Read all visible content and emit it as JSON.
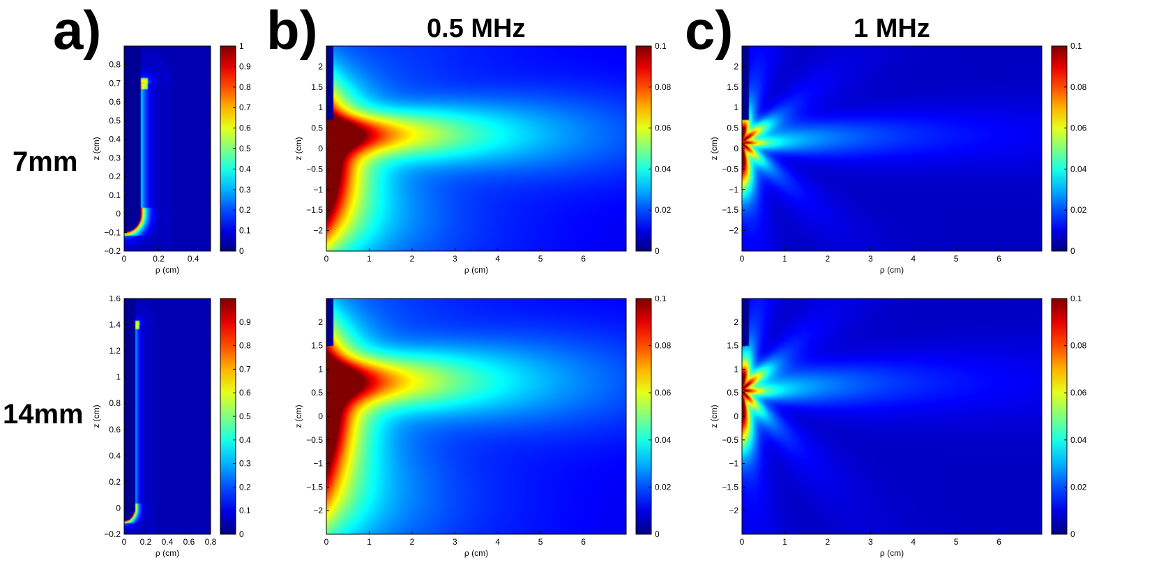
{
  "figure": {
    "panel_labels": [
      "a)",
      "b)",
      "c)"
    ],
    "column_titles": [
      "0.5 MHz",
      "1 MHz"
    ],
    "row_labels": [
      "7mm",
      "14mm"
    ]
  },
  "colormap": "jet",
  "chart_data": [
    {
      "id": "a-7mm",
      "type": "heatmap",
      "title": "",
      "xlabel": "ρ (cm)",
      "ylabel": "z (cm)",
      "xlim": [
        0,
        0.5
      ],
      "ylim": [
        -0.2,
        0.9
      ],
      "xticks": [
        0,
        0.2,
        0.4
      ],
      "xtick_labels": [
        "0",
        "0.2",
        "0.4"
      ],
      "yticks": [
        -0.2,
        -0.1,
        0,
        0.1,
        0.2,
        0.3,
        0.4,
        0.5,
        0.6,
        0.7,
        0.8
      ],
      "ytick_labels": [
        "−0.2",
        "−0.1",
        "0",
        "0.1",
        "0.2",
        "0.3",
        "0.4",
        "0.5",
        "0.6",
        "0.7",
        "0.8"
      ],
      "clim": [
        0,
        1
      ],
      "cticks": [
        0,
        0.1,
        0.2,
        0.3,
        0.4,
        0.5,
        0.6,
        0.7,
        0.8,
        0.9,
        1
      ],
      "ctick_labels": [
        "0",
        "0.1",
        "0.2",
        "0.3",
        "0.4",
        "0.5",
        "0.6",
        "0.7",
        "0.8",
        "0.9",
        "1"
      ],
      "field": "needle",
      "needle_tip_z": 0.7,
      "needle_radius": 0.1
    },
    {
      "id": "b-7mm",
      "type": "heatmap",
      "title": "",
      "xlabel": "ρ (cm)",
      "ylabel": "z (cm)",
      "xlim": [
        0,
        7
      ],
      "ylim": [
        -2.5,
        2.5
      ],
      "xticks": [
        0,
        1,
        2,
        3,
        4,
        5,
        6
      ],
      "xtick_labels": [
        "0",
        "1",
        "2",
        "3",
        "4",
        "5",
        "6"
      ],
      "yticks": [
        -2,
        -1.5,
        -1,
        -0.5,
        0,
        0.5,
        1,
        1.5,
        2
      ],
      "ytick_labels": [
        "−2",
        "−1.5",
        "−1",
        "−0.5",
        "0",
        "0.5",
        "1",
        "1.5",
        "2"
      ],
      "clim": [
        0,
        0.1
      ],
      "cticks": [
        0,
        0.02,
        0.04,
        0.06,
        0.08,
        0.1
      ],
      "ctick_labels": [
        "0",
        "0.02",
        "0.04",
        "0.06",
        "0.08",
        "0.1"
      ],
      "field": "radiation",
      "frequency_mhz": 0.5,
      "source_z": 0.35
    },
    {
      "id": "c-7mm",
      "type": "heatmap",
      "title": "",
      "xlabel": "ρ (cm)",
      "ylabel": "z (cm)",
      "xlim": [
        0,
        7
      ],
      "ylim": [
        -2.5,
        2.5
      ],
      "xticks": [
        0,
        1,
        2,
        3,
        4,
        5,
        6
      ],
      "xtick_labels": [
        "0",
        "1",
        "2",
        "3",
        "4",
        "5",
        "6"
      ],
      "yticks": [
        -2,
        -1.5,
        -1,
        -0.5,
        0,
        0.5,
        1,
        1.5,
        2
      ],
      "ytick_labels": [
        "−2",
        "−1.5",
        "−1",
        "−0.5",
        "0",
        "0.5",
        "1",
        "1.5",
        "2"
      ],
      "clim": [
        0,
        0.1
      ],
      "cticks": [
        0,
        0.02,
        0.04,
        0.06,
        0.08,
        0.1
      ],
      "ctick_labels": [
        "0",
        "0.02",
        "0.04",
        "0.06",
        "0.08",
        "0.1"
      ],
      "field": "radiation",
      "frequency_mhz": 1,
      "source_z": 0.35
    },
    {
      "id": "a-14mm",
      "type": "heatmap",
      "title": "",
      "xlabel": "ρ (cm)",
      "ylabel": "z (cm)",
      "xlim": [
        0,
        0.8
      ],
      "ylim": [
        -0.2,
        1.6
      ],
      "xticks": [
        0,
        0.2,
        0.4,
        0.6,
        0.8
      ],
      "xtick_labels": [
        "0",
        "0.2",
        "0.4",
        "0.6",
        "0.8"
      ],
      "yticks": [
        -0.2,
        0,
        0.2,
        0.4,
        0.6,
        0.8,
        1,
        1.2,
        1.4,
        1.6
      ],
      "ytick_labels": [
        "−0.2",
        "0",
        "0.2",
        "0.4",
        "0.6",
        "0.8",
        "1",
        "1.2",
        "1.4",
        "1.6"
      ],
      "clim": [
        0,
        1
      ],
      "cticks": [
        0,
        0.1,
        0.2,
        0.3,
        0.4,
        0.5,
        0.6,
        0.7,
        0.8,
        0.9
      ],
      "ctick_labels": [
        "0",
        "0.1",
        "0.2",
        "0.3",
        "0.4",
        "0.5",
        "0.6",
        "0.7",
        "0.8",
        "0.9"
      ],
      "field": "needle",
      "needle_tip_z": 1.4,
      "needle_radius": 0.1
    },
    {
      "id": "b-14mm",
      "type": "heatmap",
      "title": "",
      "xlabel": "ρ (cm)",
      "ylabel": "z (cm)",
      "xlim": [
        0,
        7
      ],
      "ylim": [
        -2.5,
        2.5
      ],
      "xticks": [
        0,
        1,
        2,
        3,
        4,
        5,
        6
      ],
      "xtick_labels": [
        "0",
        "1",
        "2",
        "3",
        "4",
        "5",
        "6"
      ],
      "yticks": [
        -2,
        -1.5,
        -1,
        -0.5,
        0,
        0.5,
        1,
        1.5,
        2
      ],
      "ytick_labels": [
        "−2",
        "−1.5",
        "−1",
        "−0.5",
        "0",
        "0.5",
        "1",
        "1.5",
        "2"
      ],
      "clim": [
        0,
        0.1
      ],
      "cticks": [
        0,
        0.02,
        0.04,
        0.06,
        0.08,
        0.1
      ],
      "ctick_labels": [
        "0",
        "0.02",
        "0.04",
        "0.06",
        "0.08",
        "0.1"
      ],
      "field": "radiation",
      "frequency_mhz": 0.5,
      "source_z": 0.75
    },
    {
      "id": "c-14mm",
      "type": "heatmap",
      "title": "",
      "xlabel": "ρ (cm)",
      "ylabel": "z (cm)",
      "xlim": [
        0,
        7
      ],
      "ylim": [
        -2.5,
        2.5
      ],
      "xticks": [
        0,
        1,
        2,
        3,
        4,
        5,
        6
      ],
      "xtick_labels": [
        "0",
        "1",
        "2",
        "3",
        "4",
        "5",
        "6"
      ],
      "yticks": [
        -2,
        -1.5,
        -1,
        -0.5,
        0,
        0.5,
        1,
        1.5,
        2
      ],
      "ytick_labels": [
        "−2",
        "−1.5",
        "−1",
        "−0.5",
        "0",
        "0.5",
        "1",
        "1.5",
        "2"
      ],
      "clim": [
        0,
        0.1
      ],
      "cticks": [
        0,
        0.02,
        0.04,
        0.06,
        0.08,
        0.1
      ],
      "ctick_labels": [
        "0",
        "0.02",
        "0.04",
        "0.06",
        "0.08",
        "0.1"
      ],
      "field": "radiation",
      "frequency_mhz": 1,
      "source_z": 0.75
    }
  ]
}
